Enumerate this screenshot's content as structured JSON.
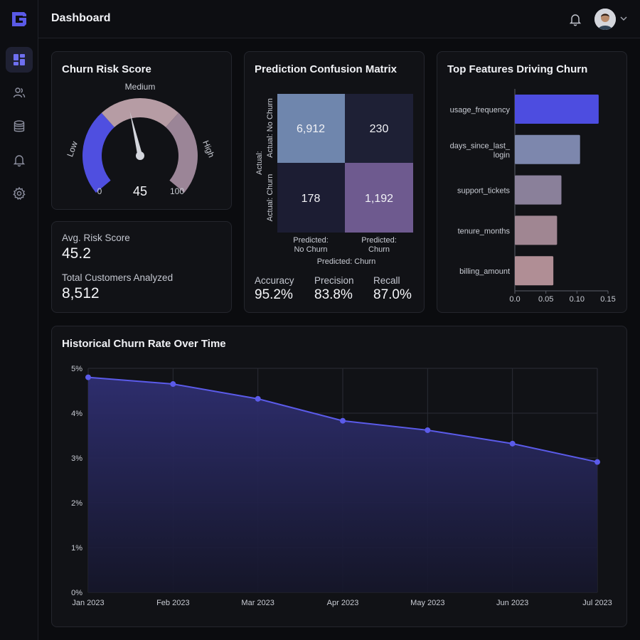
{
  "app": {
    "page_title": "Dashboard"
  },
  "sidebar": {
    "items": [
      {
        "icon": "dashboard-icon",
        "active": true
      },
      {
        "icon": "users-icon",
        "active": false
      },
      {
        "icon": "database-icon",
        "active": false
      },
      {
        "icon": "bell-icon",
        "active": false
      },
      {
        "icon": "gear-icon",
        "active": false
      }
    ]
  },
  "header": {
    "notifications_icon": "bell-icon",
    "avatar_icon": "user-avatar",
    "menu_icon": "chevron-down-icon"
  },
  "gauge": {
    "title": "Churn Risk Score",
    "value": 45,
    "value_label": "45",
    "min_label": "0",
    "max_label": "100",
    "zones": [
      "Low",
      "Medium",
      "High"
    ],
    "colors": [
      "#4f4fe0",
      "#b69ca4",
      "#9b8597"
    ]
  },
  "stats": {
    "avg_label": "Avg. Risk Score",
    "avg_value": "45.2",
    "total_label": "Total Customers Analyzed",
    "total_value": "8,512"
  },
  "matrix": {
    "title": "Prediction Confusion Matrix",
    "y_axis_label": "Actual:",
    "row_labels": [
      "Actual: No Churn",
      "Actual: Churn"
    ],
    "col_labels": [
      [
        "Predicted:",
        "No Churn"
      ],
      [
        "Predicted:",
        "Churn"
      ]
    ],
    "x_axis_label": "Predicted: Churn",
    "cells": [
      [
        "6,912",
        "230"
      ],
      [
        "178",
        "1,192"
      ]
    ],
    "cell_colors": [
      [
        "#6f86ad",
        "#1e2035"
      ],
      [
        "#1c1d33",
        "#6e5a8f"
      ]
    ],
    "metrics": [
      {
        "label": "Accuracy",
        "value": "95.2%"
      },
      {
        "label": "Precision",
        "value": "83.8%"
      },
      {
        "label": "Recall",
        "value": "87.0%"
      }
    ]
  },
  "features": {
    "title": "Top Features Driving Churn",
    "chart_data": {
      "type": "bar",
      "orientation": "horizontal",
      "categories": [
        "usage_frequency",
        "days_since_last_login",
        "support_tickets",
        "tenure_months",
        "billing_amount"
      ],
      "category_lines": [
        [
          "usage_frequency"
        ],
        [
          "days_since_last_",
          "login"
        ],
        [
          "support_tickets"
        ],
        [
          "tenure_months"
        ],
        [
          "billing_amount"
        ]
      ],
      "values": [
        0.135,
        0.105,
        0.075,
        0.068,
        0.062
      ],
      "colors": [
        "#4d4de0",
        "#7d87ad",
        "#8a809a",
        "#a08692",
        "#b08e95"
      ],
      "xlim": [
        0,
        0.15
      ],
      "ticks": [
        "0.0",
        "0.05",
        "0.10",
        "0.15"
      ],
      "tick_values": [
        0,
        0.05,
        0.1,
        0.15
      ]
    }
  },
  "history": {
    "title": "Historical Churn Rate Over Time",
    "chart_data": {
      "type": "area",
      "categories": [
        "Jan 2023",
        "Feb 2023",
        "Mar 2023",
        "Apr 2023",
        "May 2023",
        "Jun 2023",
        "Jul 2023"
      ],
      "values": [
        4.8,
        4.65,
        4.32,
        3.83,
        3.62,
        3.32,
        2.91
      ],
      "ylim": [
        0,
        5
      ],
      "y_ticks": [
        "0%",
        "1%",
        "2%",
        "3%",
        "4%",
        "5%"
      ],
      "y_tick_values": [
        0,
        1,
        2,
        3,
        4,
        5
      ],
      "line_color": "#5b5bea",
      "grid": true
    }
  }
}
